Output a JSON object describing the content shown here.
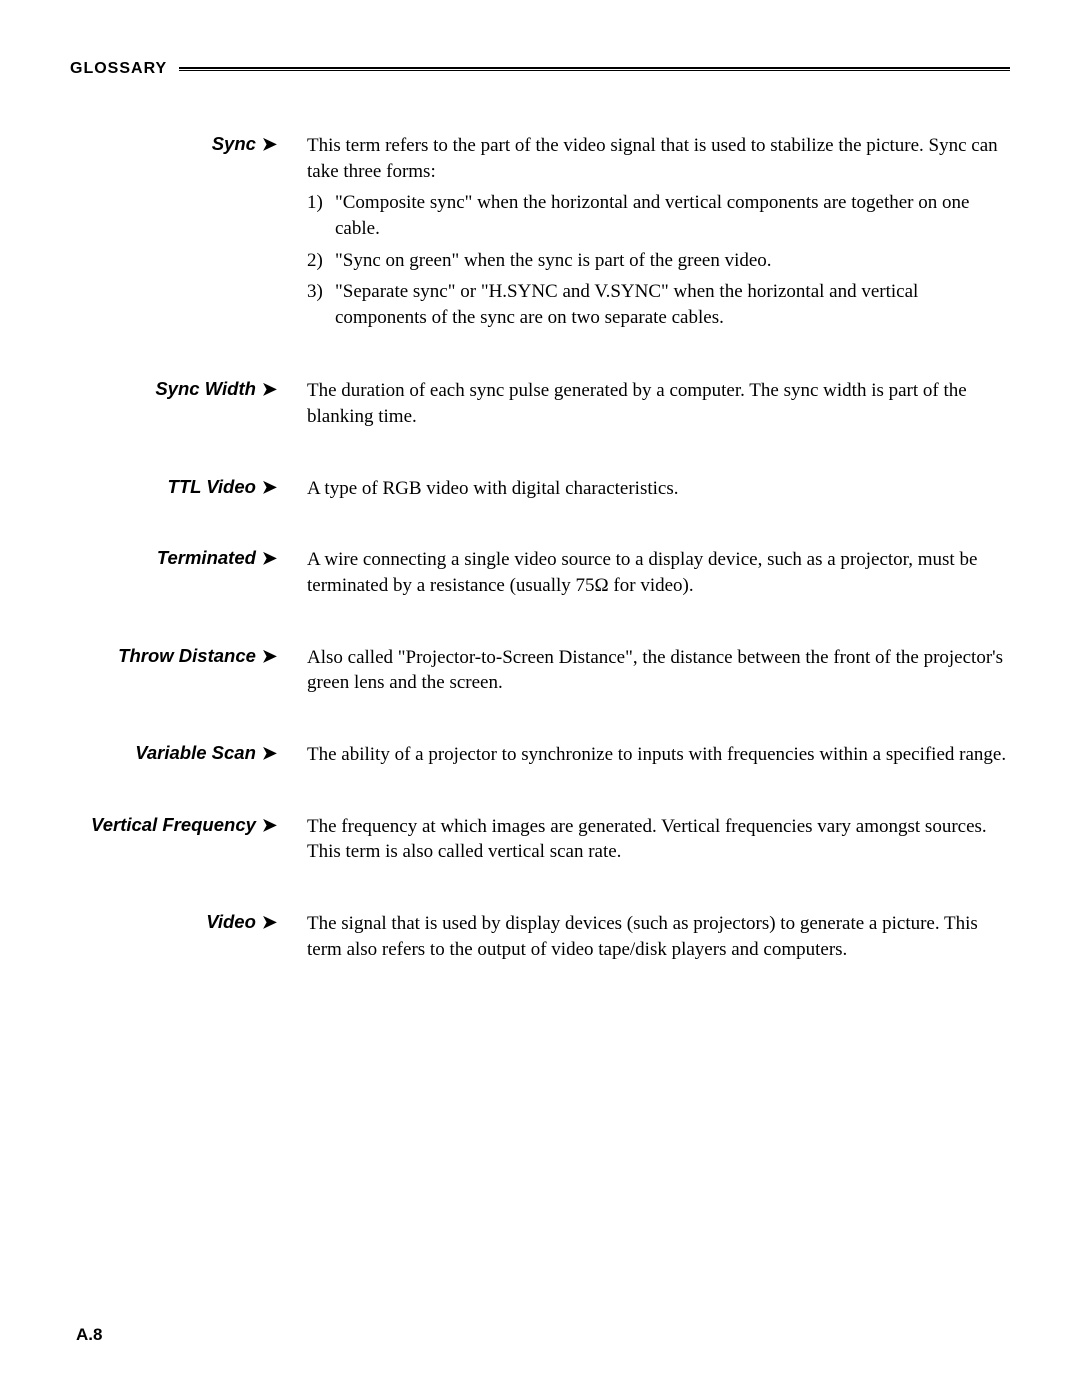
{
  "header": {
    "title": "GLOSSARY"
  },
  "entries": [
    {
      "term": "Sync",
      "definition": {
        "intro": "This term refers to the part of the video signal that is used to stabilize the picture. Sync can take three forms:",
        "list": [
          {
            "num": "1)",
            "text": "\"Composite sync\" when the horizontal and vertical components are together on one cable."
          },
          {
            "num": "2)",
            "text": "\"Sync on green\" when the sync is part of the green video."
          },
          {
            "num": "3)",
            "text": "\"Separate sync\" or \"H.SYNC and V.SYNC\" when the horizontal and vertical components of the sync are on two separate cables."
          }
        ]
      }
    },
    {
      "term": "Sync Width",
      "definition": {
        "text": "The duration of each sync pulse generated by a computer. The sync width is part of the blanking time."
      }
    },
    {
      "term": "TTL Video",
      "definition": {
        "text": "A type of RGB video with digital characteristics."
      }
    },
    {
      "term": "Terminated",
      "definition": {
        "text": "A wire connecting a single video source to a display device, such as a projector, must be terminated by a resistance (usually 75Ω for video)."
      }
    },
    {
      "term": "Throw Distance",
      "definition": {
        "text": "Also called \"Projector-to-Screen Distance\", the distance between the front of the projector's green lens and the screen."
      }
    },
    {
      "term": "Variable Scan",
      "definition": {
        "text": "The ability of a projector to synchronize to inputs with frequencies within a specified range."
      }
    },
    {
      "term": "Vertical Frequency",
      "definition": {
        "text": "The frequency at which images are generated. Vertical frequencies vary amongst sources. This term is also called vertical scan rate."
      }
    },
    {
      "term": "Video",
      "definition": {
        "text": "The signal that is used by display devices (such as projectors) to generate a picture. This term also refers to the output of video tape/disk players and computers."
      }
    }
  ],
  "pageNumber": "A.8",
  "arrowGlyph": "➤",
  "colors": {
    "background": "#ffffff",
    "text": "#000000",
    "rule": "#000000"
  },
  "typography": {
    "term_font": "Helvetica, bold italic",
    "term_fontsize_pt": 14,
    "body_font": "Georgia/Times serif",
    "body_fontsize_pt": 14
  }
}
